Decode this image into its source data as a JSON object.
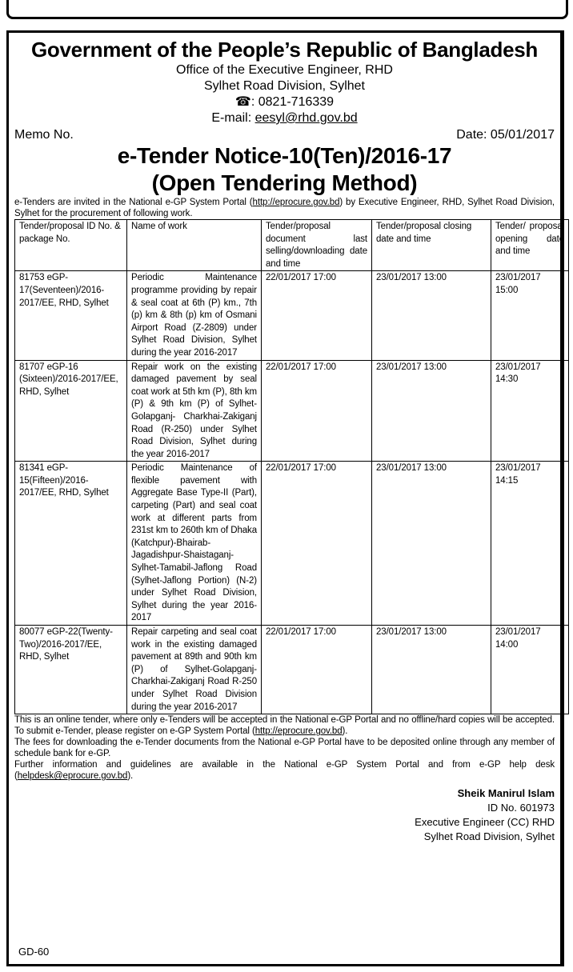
{
  "header": {
    "title": "Government of the People’s Republic of Bangladesh",
    "office": "Office of the Executive Engineer, RHD",
    "division": "Sylhet Road Division, Sylhet",
    "phone_icon": "telephone-icon",
    "phone": ": 0821-716339",
    "email_label": "E-mail: ",
    "email": "eesyl@rhd.gov.bd"
  },
  "memo": {
    "label": "Memo No.",
    "date": "Date: 05/01/2017"
  },
  "notice": {
    "title": "e-Tender Notice-10(Ten)/2016-17",
    "subtitle": "(Open Tendering Method)"
  },
  "intro": {
    "before": "e-Tenders are invited in the National e-GP System Portal (",
    "link": "http://eprocure.gov.bd",
    "after": ") by Executive Engineer, RHD, Sylhet Road Division, Sylhet for the procurement of following work."
  },
  "table": {
    "headers": [
      "Tender/proposal ID No. & package No.",
      "Name of work",
      "Tender/proposal document last selling/downloading date and time",
      "Tender/proposal closing date and time",
      "Tender/ proposal opening date and time"
    ],
    "rows": [
      {
        "id": "81753 eGP-17(Seventeen)/2016-2017/EE, RHD, Sylhet",
        "work": "Periodic Maintenance programme providing by repair & seal coat at 6th (P) km., 7th (p) km & 8th (p) km of Osmani Airport Road (Z-2809) under Sylhet Road Division, Sylhet during the year 2016-2017",
        "selling": "22/01/2017 17:00",
        "closing": "23/01/2017 13:00",
        "opening": "23/01/2017 15:00"
      },
      {
        "id": "81707 eGP-16 (Sixteen)/2016-2017/EE, RHD, Sylhet",
        "work": "Repair work on the existing damaged pavement by seal coat work at 5th km (P), 8th km (P) & 9th km (P) of Sylhet-Golapganj- Charkhai-Zakiganj Road (R-250) under Sylhet Road Division, Sylhet during the year 2016-2017",
        "selling": "22/01/2017 17:00",
        "closing": "23/01/2017 13:00",
        "opening": "23/01/2017 14:30"
      },
      {
        "id": "81341 eGP-15(Fifteen)/2016-2017/EE, RHD, Sylhet",
        "work": "Periodic Maintenance of flexible pavement with Aggregate Base Type-II (Part), carpeting (Part) and seal coat work at different parts from 231st km to 260th km of Dhaka (Katchpur)-Bhairab-Jagadishpur-Shaistaganj-Sylhet-Tamabil-Jaflong Road (Sylhet-Jaflong Portion) (N-2) under Sylhet Road Division, Sylhet during the year 2016-2017",
        "selling": "22/01/2017 17:00",
        "closing": "23/01/2017 13:00",
        "opening": "23/01/2017 14:15"
      },
      {
        "id": "80077 eGP-22(Twenty-Two)/2016-2017/EE, RHD, Sylhet",
        "work": "Repair carpeting and seal coat work in the existing damaged pavement at 89th and 90th km (P) of Sylhet-Golapganj-Charkhai-Zakiganj Road R-250 under Sylhet Road Division during the year 2016-2017",
        "selling": "22/01/2017 17:00",
        "closing": "23/01/2017 13:00",
        "opening": "23/01/2017 14:00"
      }
    ]
  },
  "footer": {
    "p1_before": "This is an online tender, where only e-Tenders will be accepted in the National e-GP Portal and no offline/hard copies will be accepted. To submit e-Tender, please register on e-GP System Portal (",
    "p1_link": "http://eprocure.gov.bd",
    "p1_after": ").",
    "p2": "The fees for downloading the e-Tender documents from the National e-GP Portal have to be deposited online through any member of schedule bank for e-GP.",
    "p3_before": "Further information and guidelines are available in the National e-GP System Portal and from e-GP help desk (",
    "p3_link": "helpdesk@eprocure.gov.bd",
    "p3_after": ")."
  },
  "signature": {
    "name": "Sheik Manirul Islam",
    "id": "ID No. 601973",
    "designation": "Executive Engineer (CC) RHD",
    "office": "Sylhet Road Division, Sylhet"
  },
  "code": "GD-60"
}
